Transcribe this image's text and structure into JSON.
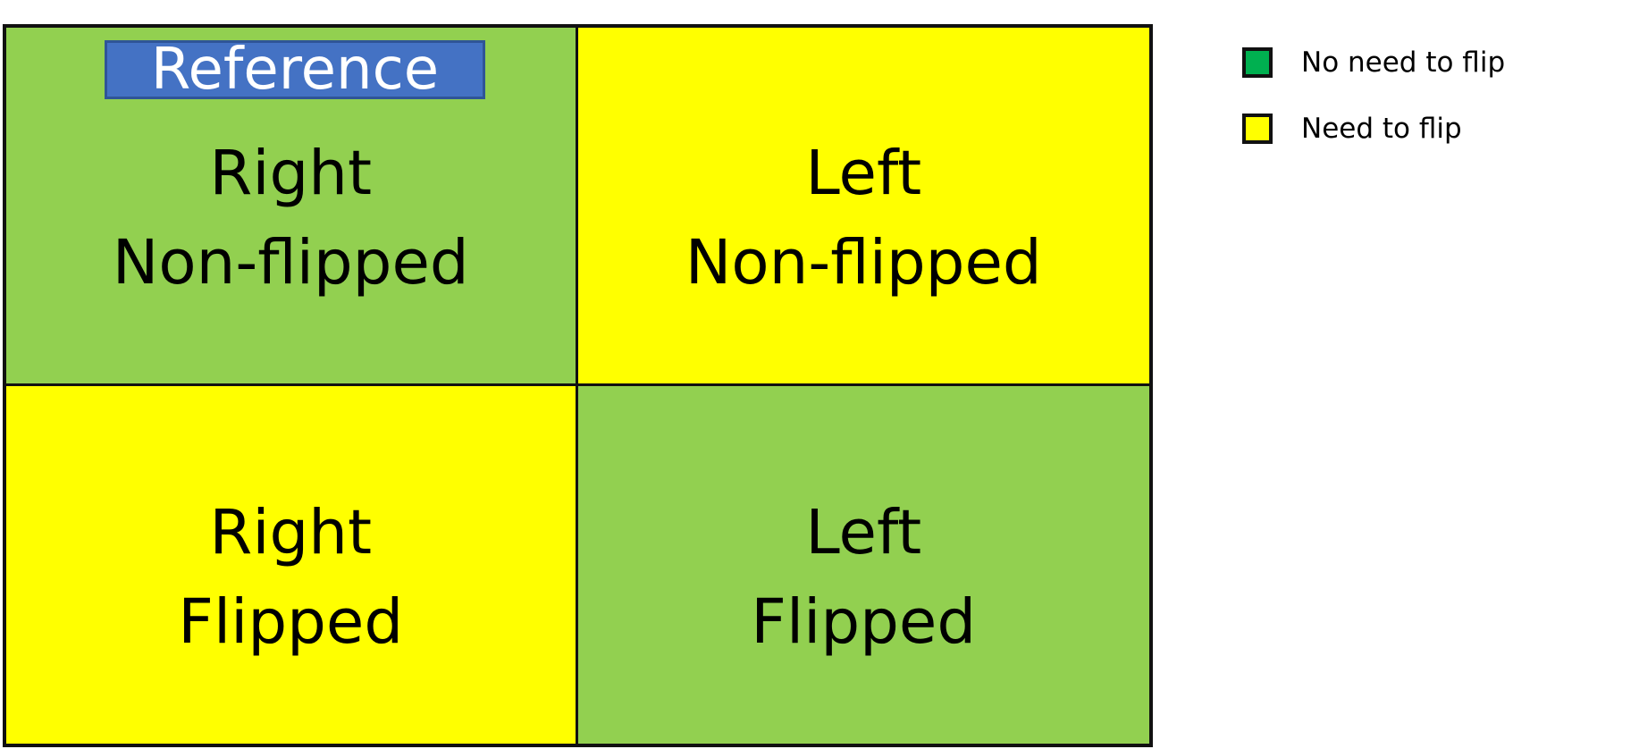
{
  "colors": {
    "green_cell": "#92d050",
    "yellow_cell": "#ffff00",
    "legend_green": "#00b050",
    "legend_yellow": "#ffff00",
    "reference_bg": "#4472c4"
  },
  "reference_label": "Reference",
  "grid": {
    "cells": [
      {
        "line1": "Right",
        "line2": "Non-flipped",
        "color": "#92d050"
      },
      {
        "line1": "Left",
        "line2": "Non-flipped",
        "color": "#ffff00"
      },
      {
        "line1": "Right",
        "line2": "Flipped",
        "color": "#ffff00"
      },
      {
        "line1": "Left",
        "line2": "Flipped",
        "color": "#92d050"
      }
    ]
  },
  "legend": {
    "items": [
      {
        "label": "No need to flip",
        "color": "#00b050"
      },
      {
        "label": "Need to flip",
        "color": "#ffff00"
      }
    ]
  }
}
